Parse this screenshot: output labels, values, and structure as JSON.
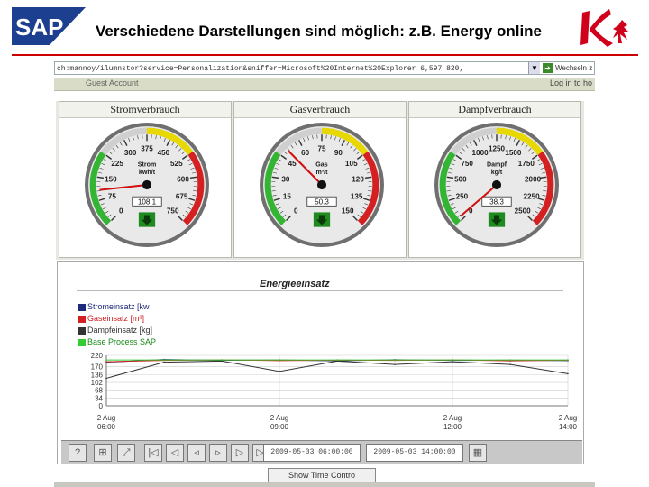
{
  "slide": {
    "title": "Verschiedene Darstellungen sind möglich: z.B. Energy online",
    "logo_text": "SAP",
    "colors": {
      "sap_blue": "#1d3f8f",
      "rule_red": "#cc0000",
      "brand_red": "#d0021b"
    }
  },
  "browser": {
    "address": "ch:mannoy/ilumnstor?service=Personalization&sniffer=Microsoft%20Internet%20Explorer 6,597 820,",
    "go_label": "Wechseln z",
    "guest_account": "Guest Account",
    "login_link": "Log in to ho"
  },
  "gauges": [
    {
      "title": "Stromverbrauch",
      "center_label": [
        "Strom",
        "kwh/t"
      ],
      "ticks": [
        "0",
        "75",
        "150",
        "225",
        "300",
        "375",
        "450",
        "525",
        "600",
        "675",
        "750"
      ],
      "value_display": "108.1",
      "value": 108.1,
      "max": 750,
      "icon": "down-arrow-icon"
    },
    {
      "title": "Gasverbrauch",
      "center_label": [
        "Gas",
        "m³/t"
      ],
      "ticks": [
        "0",
        "15",
        "30",
        "45",
        "60",
        "75",
        "90",
        "105",
        "120",
        "135",
        "150"
      ],
      "value_display": "50.3",
      "value": 50.3,
      "max": 150,
      "icon": "down-arrow-icon"
    },
    {
      "title": "Dampfverbrauch",
      "center_label": [
        "Dampf",
        "kg/t"
      ],
      "ticks": [
        "0",
        "250",
        "500",
        "750",
        "1000",
        "1250",
        "1500",
        "1750",
        "2000",
        "2250",
        "2500"
      ],
      "value_display": "38.3",
      "value": 38.3,
      "max": 2500,
      "icon": "down-arrow-icon"
    }
  ],
  "gauge_colors": {
    "green": "#33b533",
    "yellow": "#e6d800",
    "red": "#d42020",
    "needle": "#d01010"
  },
  "chart": {
    "title": "Energieeinsatz",
    "legend": [
      {
        "label": "Stromeinsatz [kw",
        "color": "#1e2a7a"
      },
      {
        "label": "Gaseinsatz [m³]",
        "color": "#d02020"
      },
      {
        "label": "Dampfeinsatz [kg]",
        "color": "#333333"
      },
      {
        "label": "Base Process SAP",
        "color": "#33cc33"
      }
    ]
  },
  "chart_data": {
    "type": "line",
    "title": "Energieeinsatz",
    "x": [
      "2 Aug 06:00",
      "2 Aug 07:00",
      "2 Aug 08:00",
      "2 Aug 09:00",
      "2 Aug 10:00",
      "2 Aug 11:00",
      "2 Aug 12:00",
      "2 Aug 13:00",
      "2 Aug 14:00"
    ],
    "xticks": [
      "2 Aug 06:00",
      "2 Aug 09:00",
      "2 Aug 12:00",
      "2 Aug 14:00"
    ],
    "yticks": [
      0,
      34,
      68,
      102,
      136,
      170,
      220
    ],
    "ylim": [
      0,
      220
    ],
    "series": [
      {
        "name": "Stromeinsatz [kw",
        "color": "#1e2a7a",
        "values": [
          190,
          202,
          198,
          200,
          196,
          201,
          198,
          199,
          197
        ]
      },
      {
        "name": "Gaseinsatz [m³]",
        "color": "#d02020",
        "values": [
          192,
          198,
          200,
          197,
          199,
          198,
          200,
          196,
          199
        ]
      },
      {
        "name": "Dampfeinsatz [kg]",
        "color": "#333333",
        "values": [
          120,
          190,
          195,
          150,
          195,
          180,
          192,
          180,
          140
        ]
      },
      {
        "name": "Base Process SAP",
        "color": "#33cc33",
        "values": [
          200,
          200,
          200,
          200,
          200,
          200,
          200,
          200,
          200
        ]
      }
    ]
  },
  "toolbar": {
    "start_time": "2009-05-03 06:00:00",
    "end_time": "2009-05-03 14:00:00",
    "show_time_control": "Show Time Contro"
  }
}
